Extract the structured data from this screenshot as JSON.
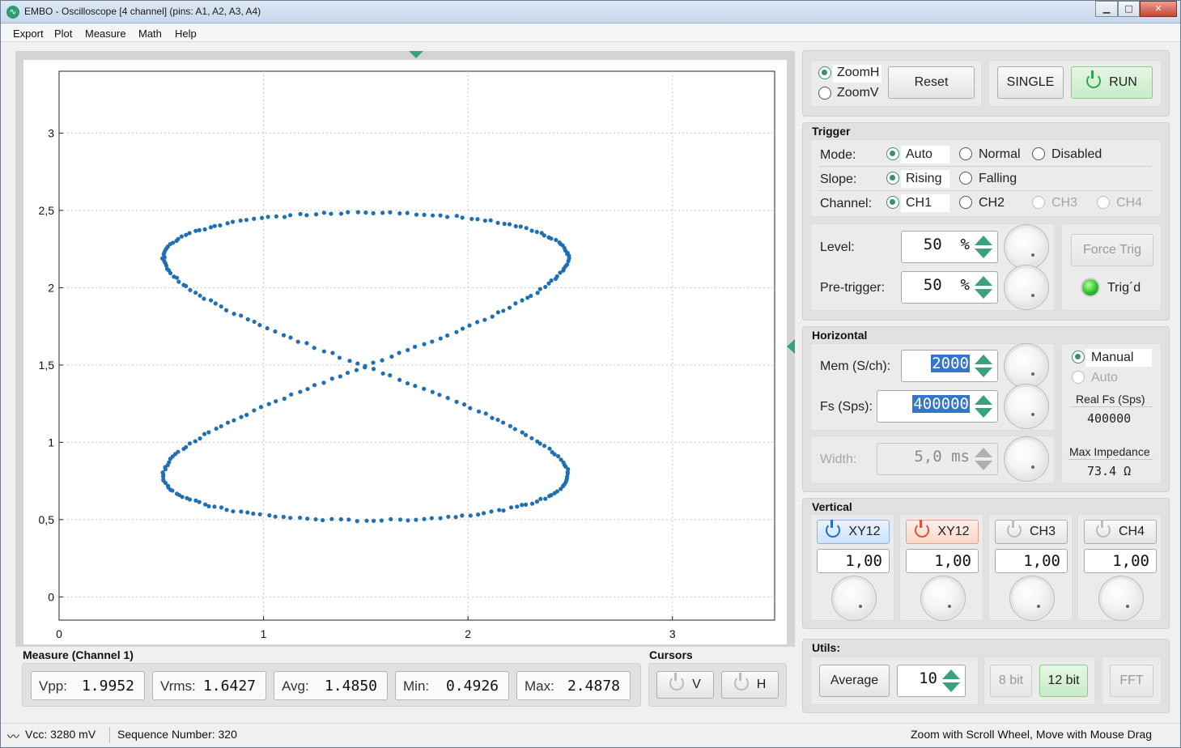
{
  "window": {
    "title": "EMBO - Oscilloscope [4 channel] (pins: A1, A2, A3, A4)",
    "minimize": "▁",
    "maximize": "□",
    "close": "✕",
    "app_icon": "∿"
  },
  "menu": [
    "Export",
    "Plot",
    "Measure",
    "Math",
    "Help"
  ],
  "plot": {
    "x_ticks": [
      "0",
      "1",
      "2",
      "3"
    ],
    "y_ticks": [
      "0",
      "0,5",
      "1",
      "1,5",
      "2",
      "2,5",
      "3"
    ],
    "trace_color": "#1f6fb5"
  },
  "chart_data": {
    "type": "scatter",
    "xlim": [
      0,
      3.5
    ],
    "ylim": [
      -0.15,
      3.4
    ],
    "grid": true,
    "series": [
      {
        "curve": "lissajous",
        "x_center": 1.5,
        "x_amplitude": 0.99,
        "y_center": 1.49,
        "y_amplitude": 0.995,
        "frequency_ratio": "1:2",
        "points": 300
      }
    ]
  },
  "zoom": {
    "zoomh": "ZoomH",
    "zoomv": "ZoomV",
    "reset": "Reset",
    "single": "SINGLE",
    "run": "RUN"
  },
  "trigger": {
    "title": "Trigger",
    "mode_label": "Mode:",
    "modes": [
      "Auto",
      "Normal",
      "Disabled"
    ],
    "slope_label": "Slope:",
    "slopes": [
      "Rising",
      "Falling"
    ],
    "channel_label": "Channel:",
    "channels": [
      "CH1",
      "CH2",
      "CH3",
      "CH4"
    ],
    "level_label": "Level:",
    "level_value": "50  %",
    "pretrig_label": "Pre-trigger:",
    "pretrig_value": "50  %",
    "force_trig": "Force Trig",
    "trigd": "Trig´d"
  },
  "horizontal": {
    "title": "Horizontal",
    "mem_label": "Mem (S/ch):",
    "mem_value": "2000",
    "fs_label": "Fs (Sps):",
    "fs_value": "400000",
    "width_label": "Width:",
    "width_value": "5,0 ms",
    "manual": "Manual",
    "auto": "Auto",
    "real_fs_label": "Real Fs (Sps)",
    "real_fs_value": "400000",
    "max_imp_label": "Max Impedance",
    "max_imp_value": "73.4  Ω"
  },
  "vertical": {
    "title": "Vertical",
    "channels": [
      {
        "label": "XY12",
        "value": "1,00"
      },
      {
        "label": "XY12",
        "value": "1,00"
      },
      {
        "label": "CH3",
        "value": "1,00"
      },
      {
        "label": "CH4",
        "value": "1,00"
      }
    ]
  },
  "utils": {
    "title": "Utils:",
    "average": "Average",
    "average_value": "10",
    "bit8": "8 bit",
    "bit12": "12 bit",
    "fft": "FFT"
  },
  "measure": {
    "title": "Measure (Channel 1)",
    "items": [
      {
        "k": "Vpp:",
        "v": "1.9952"
      },
      {
        "k": "Vrms:",
        "v": "1.6427"
      },
      {
        "k": "Avg:",
        "v": "1.4850"
      },
      {
        "k": "Min:",
        "v": "0.4926"
      },
      {
        "k": "Max:",
        "v": "2.4878"
      }
    ]
  },
  "cursors": {
    "title": "Cursors",
    "v": "V",
    "h": "H"
  },
  "status": {
    "vcc": "Vcc: 3280 mV",
    "seq": "Sequence Number: 320",
    "hint": "Zoom with Scroll Wheel, Move with Mouse Drag",
    "wave_icon": "〰"
  }
}
